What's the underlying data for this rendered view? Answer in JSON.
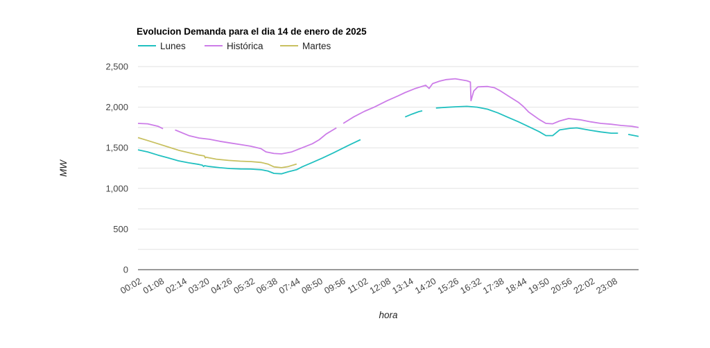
{
  "chart_data": {
    "type": "line",
    "title": "Evolucion Demanda para el dia 14 de enero de 2025",
    "xlabel": "hora",
    "ylabel": "MW",
    "ylim": [
      0,
      2500
    ],
    "yticks": [
      "0",
      "500",
      "1,000",
      "1,500",
      "2,000",
      "2,500"
    ],
    "ytick_values": [
      0,
      500,
      1000,
      1500,
      2000,
      2500
    ],
    "grid": true,
    "legend_placement": "top-left",
    "xlim": [
      "00:02",
      "24:20"
    ],
    "xticks": [
      "00:02",
      "01:08",
      "02:14",
      "03:20",
      "04:26",
      "05:32",
      "06:38",
      "07:44",
      "08:50",
      "09:56",
      "11:02",
      "12:08",
      "13:14",
      "14:20",
      "15:26",
      "16:32",
      "17:38",
      "18:44",
      "19:50",
      "20:56",
      "22:02",
      "23:08"
    ],
    "series": [
      {
        "name": "Lunes",
        "color": "#20c0c0",
        "segments": [
          [
            [
              "00:02",
              1475
            ],
            [
              "00:30",
              1450
            ],
            [
              "01:00",
              1410
            ],
            [
              "01:30",
              1375
            ],
            [
              "02:00",
              1340
            ],
            [
              "02:30",
              1315
            ],
            [
              "03:00",
              1295
            ],
            [
              "03:10",
              1285
            ],
            [
              "03:13",
              1270
            ],
            [
              "03:16",
              1280
            ],
            [
              "03:30",
              1270
            ],
            [
              "04:00",
              1255
            ],
            [
              "04:30",
              1245
            ],
            [
              "05:00",
              1240
            ],
            [
              "05:30",
              1238
            ],
            [
              "06:00",
              1230
            ],
            [
              "06:20",
              1215
            ],
            [
              "06:38",
              1185
            ],
            [
              "07:00",
              1180
            ],
            [
              "07:20",
              1205
            ],
            [
              "07:44",
              1230
            ],
            [
              "08:00",
              1265
            ],
            [
              "08:30",
              1320
            ],
            [
              "09:00",
              1375
            ],
            [
              "09:30",
              1435
            ],
            [
              "09:56",
              1490
            ],
            [
              "10:10",
              1520
            ],
            [
              "10:30",
              1560
            ],
            [
              "10:50",
              1600
            ]
          ],
          [
            [
              "13:00",
              1880
            ],
            [
              "13:20",
              1915
            ],
            [
              "13:40",
              1945
            ],
            [
              "13:50",
              1955
            ]
          ],
          [
            [
              "14:30",
              1990
            ],
            [
              "15:00",
              1998
            ],
            [
              "15:30",
              2005
            ],
            [
              "16:00",
              2010
            ],
            [
              "16:30",
              2000
            ],
            [
              "17:00",
              1975
            ],
            [
              "17:30",
              1930
            ],
            [
              "18:00",
              1875
            ],
            [
              "18:30",
              1820
            ],
            [
              "19:00",
              1760
            ],
            [
              "19:30",
              1700
            ],
            [
              "19:50",
              1650
            ],
            [
              "20:10",
              1650
            ],
            [
              "20:30",
              1720
            ],
            [
              "21:00",
              1740
            ],
            [
              "21:20",
              1745
            ],
            [
              "21:40",
              1730
            ],
            [
              "22:00",
              1715
            ],
            [
              "22:30",
              1695
            ],
            [
              "23:00",
              1680
            ],
            [
              "23:20",
              1680
            ]
          ],
          [
            [
              "23:50",
              1665
            ],
            [
              "24:20",
              1640
            ]
          ]
        ]
      },
      {
        "name": "Histórica",
        "color": "#cc7ce8",
        "segments": [
          [
            [
              "00:02",
              1800
            ],
            [
              "00:30",
              1795
            ],
            [
              "01:00",
              1765
            ],
            [
              "01:15",
              1735
            ]
          ],
          [
            [
              "01:50",
              1720
            ],
            [
              "02:30",
              1650
            ],
            [
              "03:00",
              1620
            ],
            [
              "03:30",
              1605
            ],
            [
              "04:00",
              1580
            ],
            [
              "04:30",
              1560
            ],
            [
              "05:00",
              1540
            ],
            [
              "05:30",
              1520
            ],
            [
              "06:00",
              1490
            ],
            [
              "06:15",
              1450
            ],
            [
              "06:38",
              1430
            ],
            [
              "07:00",
              1425
            ],
            [
              "07:30",
              1450
            ],
            [
              "08:00",
              1500
            ],
            [
              "08:30",
              1550
            ],
            [
              "08:50",
              1600
            ],
            [
              "09:10",
              1670
            ],
            [
              "09:30",
              1720
            ],
            [
              "09:40",
              1745
            ]
          ],
          [
            [
              "10:00",
              1800
            ],
            [
              "10:30",
              1880
            ],
            [
              "11:02",
              1950
            ],
            [
              "11:30",
              2000
            ],
            [
              "12:08",
              2080
            ],
            [
              "12:40",
              2140
            ],
            [
              "13:00",
              2180
            ],
            [
              "13:30",
              2230
            ],
            [
              "14:00",
              2270
            ],
            [
              "14:10",
              2230
            ],
            [
              "14:20",
              2290
            ],
            [
              "14:40",
              2320
            ],
            [
              "15:00",
              2340
            ],
            [
              "15:26",
              2350
            ],
            [
              "15:45",
              2335
            ],
            [
              "16:00",
              2325
            ],
            [
              "16:10",
              2310
            ],
            [
              "16:12",
              2080
            ],
            [
              "16:20",
              2200
            ],
            [
              "16:32",
              2250
            ],
            [
              "17:00",
              2255
            ],
            [
              "17:20",
              2240
            ],
            [
              "17:38",
              2200
            ],
            [
              "18:00",
              2140
            ],
            [
              "18:30",
              2060
            ],
            [
              "18:44",
              2010
            ],
            [
              "19:00",
              1940
            ],
            [
              "19:30",
              1850
            ],
            [
              "19:50",
              1800
            ],
            [
              "20:10",
              1795
            ],
            [
              "20:30",
              1830
            ],
            [
              "20:56",
              1860
            ],
            [
              "21:30",
              1845
            ],
            [
              "22:00",
              1820
            ],
            [
              "22:30",
              1800
            ],
            [
              "23:00",
              1790
            ],
            [
              "23:30",
              1775
            ],
            [
              "24:00",
              1765
            ],
            [
              "24:20",
              1750
            ]
          ]
        ]
      },
      {
        "name": "Martes",
        "color": "#c8c060",
        "segments": [
          [
            [
              "00:02",
              1625
            ],
            [
              "00:30",
              1590
            ],
            [
              "01:00",
              1550
            ],
            [
              "01:30",
              1510
            ],
            [
              "02:00",
              1470
            ],
            [
              "02:30",
              1440
            ],
            [
              "03:00",
              1410
            ],
            [
              "03:15",
              1400
            ],
            [
              "03:18",
              1375
            ],
            [
              "03:20",
              1385
            ],
            [
              "03:50",
              1360
            ],
            [
              "04:26",
              1345
            ],
            [
              "05:00",
              1335
            ],
            [
              "05:32",
              1330
            ],
            [
              "06:00",
              1320
            ],
            [
              "06:20",
              1300
            ],
            [
              "06:38",
              1265
            ],
            [
              "07:00",
              1255
            ],
            [
              "07:20",
              1270
            ],
            [
              "07:44",
              1300
            ]
          ]
        ]
      }
    ]
  }
}
